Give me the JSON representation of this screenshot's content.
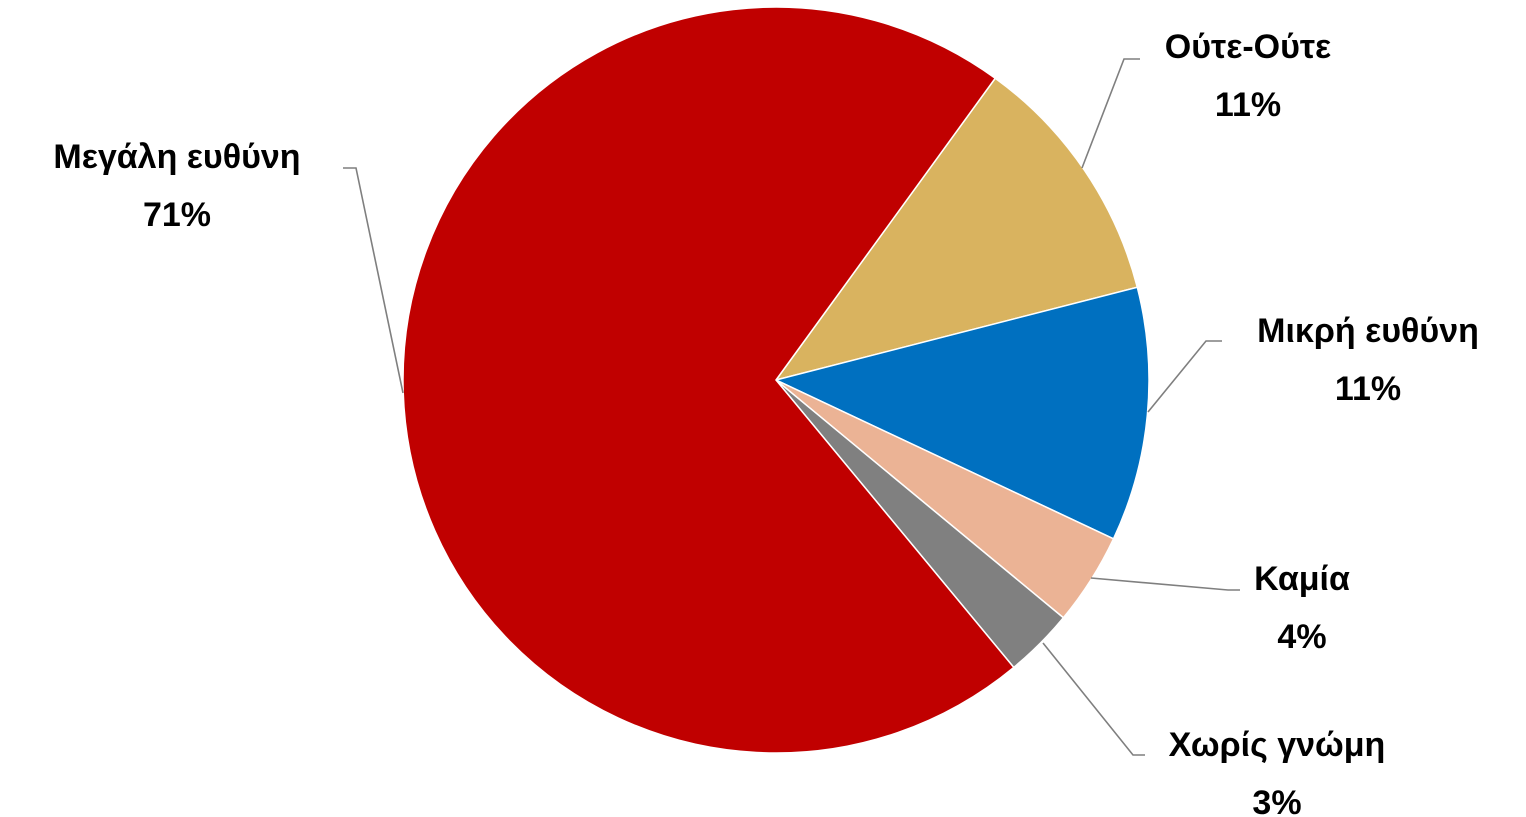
{
  "chart_data": {
    "type": "pie",
    "start_angle_deg": -54,
    "direction": "clockwise",
    "slices": [
      {
        "label": "Ούτε-Ούτε",
        "value": 11,
        "value_text": "11%",
        "color": "#d9b35f"
      },
      {
        "label": "Μικρή ευθύνη",
        "value": 11,
        "value_text": "11%",
        "color": "#0070c0"
      },
      {
        "label": "Καμία",
        "value": 4,
        "value_text": "4%",
        "color": "#ebb395"
      },
      {
        "label": "Χωρίς γνώμη",
        "value": 3,
        "value_text": "3%",
        "color": "#808080"
      },
      {
        "label": "Μεγάλη ευθύνη",
        "value": 71,
        "value_text": "71%",
        "color": "#c00000"
      }
    ]
  }
}
